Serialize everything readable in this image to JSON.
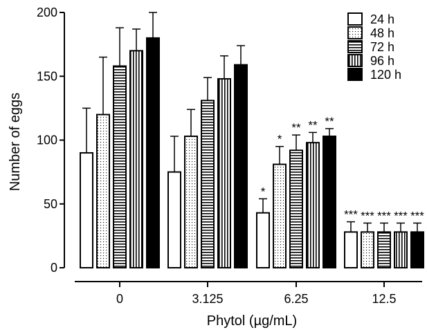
{
  "chart_data": {
    "type": "bar",
    "xlabel": "Phytol (µg/mL)",
    "ylabel": "Number of eggs",
    "ylim": [
      0,
      200
    ],
    "yticks": [
      "0",
      "50",
      "100",
      "150",
      "200"
    ],
    "categories": [
      "0",
      "3.125",
      "6.25",
      "12.5"
    ],
    "legend_position": "top-right",
    "series": [
      {
        "name": "24 h",
        "pattern": "empty",
        "values": [
          90,
          75,
          43,
          28
        ],
        "errors": [
          35,
          28,
          11,
          8
        ],
        "significance": [
          "",
          "",
          "*",
          "***"
        ]
      },
      {
        "name": "48 h",
        "pattern": "dotted",
        "values": [
          120,
          103,
          81,
          28
        ],
        "errors": [
          45,
          21,
          14,
          7
        ],
        "significance": [
          "",
          "",
          "*",
          "***"
        ]
      },
      {
        "name": "72 h",
        "pattern": "horizontal",
        "values": [
          158,
          131,
          92,
          28
        ],
        "errors": [
          30,
          18,
          12,
          7
        ],
        "significance": [
          "",
          "",
          "**",
          "***"
        ]
      },
      {
        "name": "96 h",
        "pattern": "vertical",
        "values": [
          170,
          148,
          98,
          28
        ],
        "errors": [
          17,
          18,
          8,
          7
        ],
        "significance": [
          "",
          "",
          "**",
          "***"
        ]
      },
      {
        "name": "120 h",
        "pattern": "solid",
        "values": [
          180,
          159,
          103,
          28
        ],
        "errors": [
          20,
          15,
          6,
          7
        ],
        "significance": [
          "",
          "",
          "**",
          "***"
        ]
      }
    ]
  }
}
